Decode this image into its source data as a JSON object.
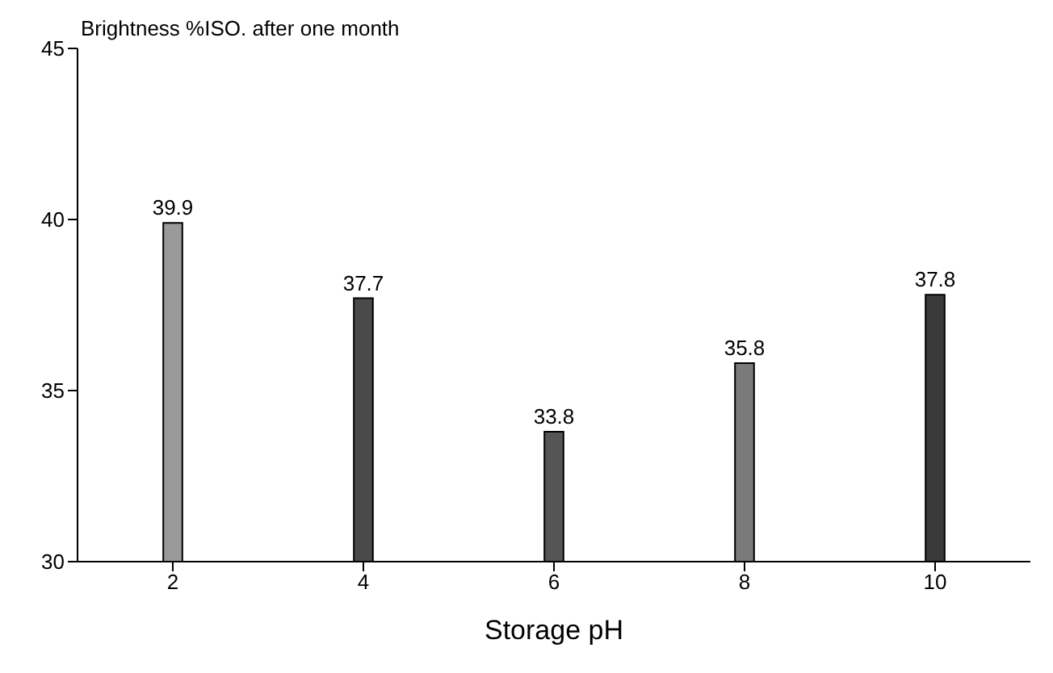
{
  "chart_data": {
    "type": "bar",
    "title": "Brightness %ISO. after one month",
    "xlabel": "Storage pH",
    "categories": [
      "2",
      "4",
      "6",
      "8",
      "10"
    ],
    "values": [
      39.9,
      37.7,
      33.8,
      35.8,
      37.8
    ],
    "colors": [
      "#9a9a9a",
      "#4a4a4a",
      "#555555",
      "#7a7a7a",
      "#3a3a3a"
    ],
    "ylim": [
      30,
      45
    ],
    "yticks": [
      30,
      35,
      40,
      45
    ],
    "data_labels": true
  }
}
